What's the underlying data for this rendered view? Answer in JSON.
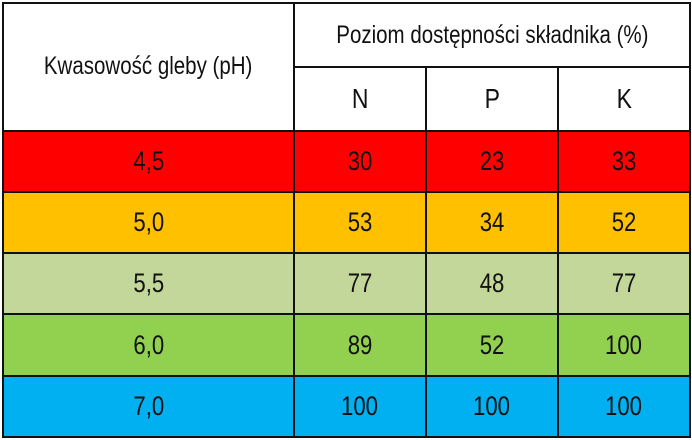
{
  "table": {
    "ph_header": "Kwasowość gleby (pH)",
    "group_header": "Poziom dostępności składnika (%)",
    "columns": [
      "N",
      "P",
      "K"
    ],
    "rows": [
      {
        "ph": "4,5",
        "values": [
          "30",
          "23",
          "33"
        ],
        "color": "#ff0000"
      },
      {
        "ph": "5,0",
        "values": [
          "53",
          "34",
          "52"
        ],
        "color": "#ffc000"
      },
      {
        "ph": "5,5",
        "values": [
          "77",
          "48",
          "77"
        ],
        "color": "#c4d79b"
      },
      {
        "ph": "6,0",
        "values": [
          "89",
          "52",
          "100"
        ],
        "color": "#92d050"
      },
      {
        "ph": "7,0",
        "values": [
          "100",
          "100",
          "100"
        ],
        "color": "#00b0f0"
      }
    ]
  }
}
